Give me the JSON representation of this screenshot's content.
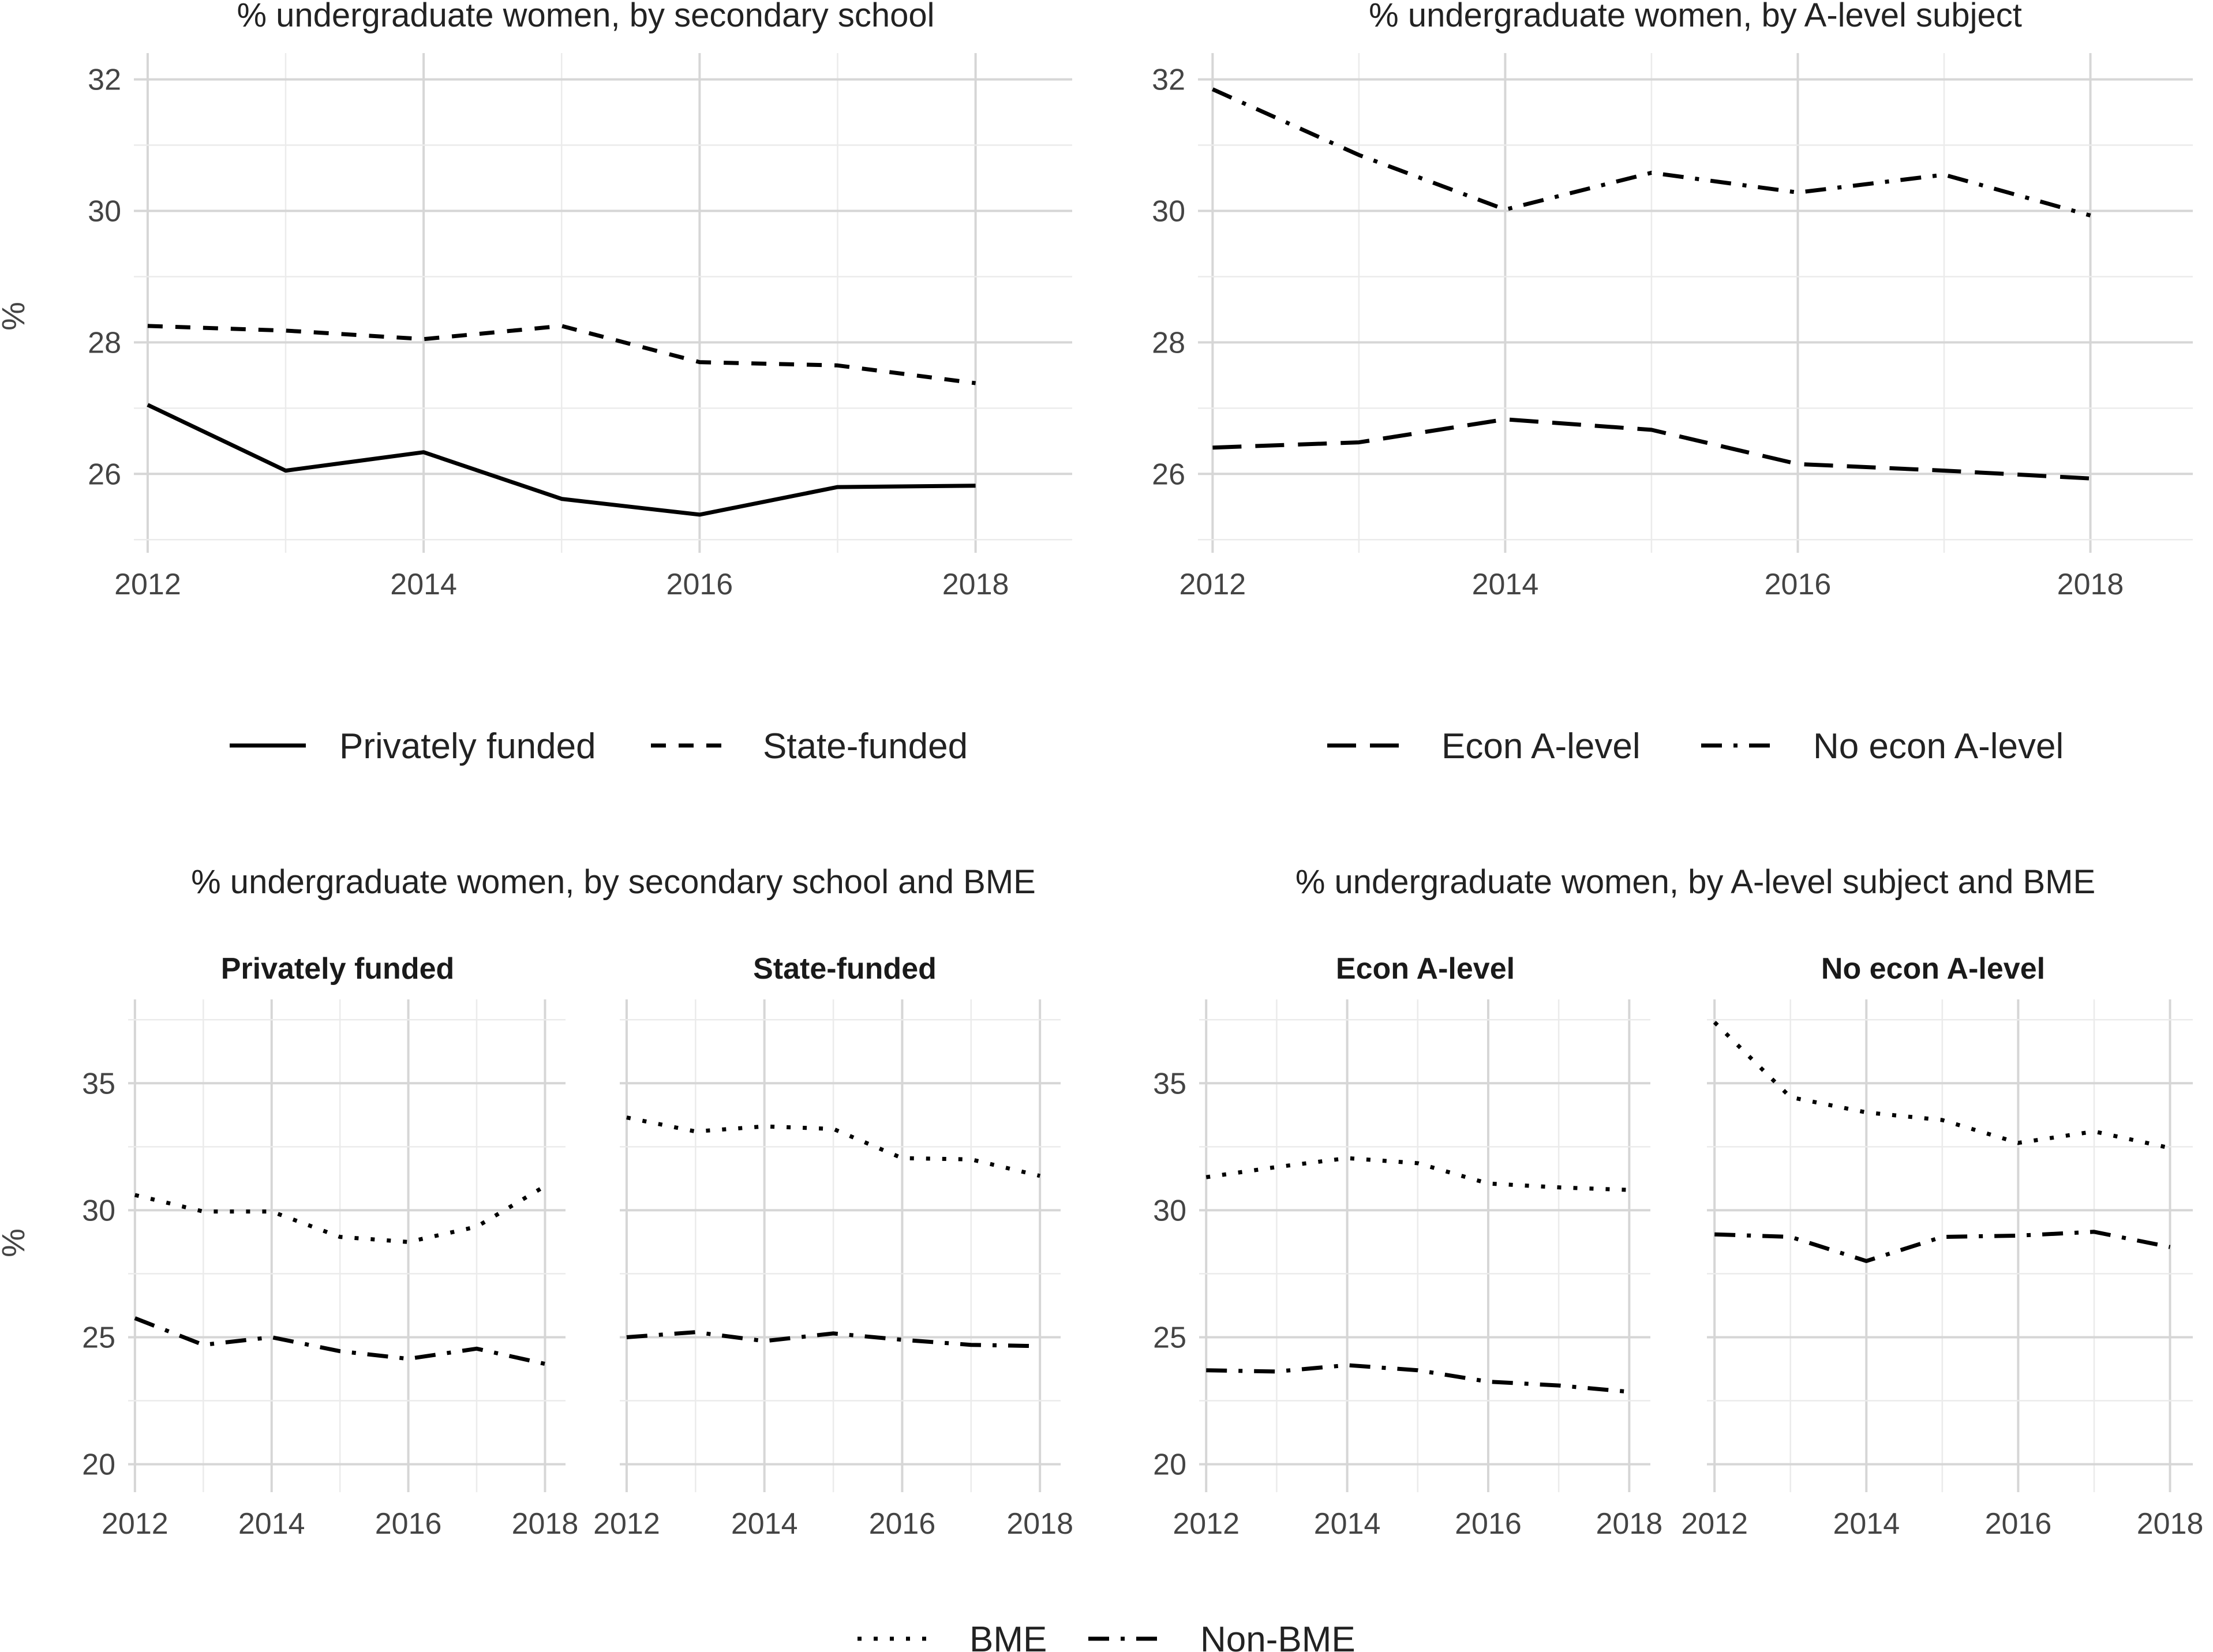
{
  "chart_data": [
    {
      "id": "p1",
      "type": "line",
      "title": "% undergraduate women, by secondary school",
      "ylabel": "%",
      "x": [
        2012,
        2013,
        2014,
        2015,
        2016,
        2017,
        2018
      ],
      "xlim": [
        2011.9,
        2018.7
      ],
      "ylim": [
        24.8,
        32.4
      ],
      "xticks": [
        "2012",
        "2014",
        "2016",
        "2018"
      ],
      "yticks": [
        "26",
        "28",
        "30",
        "32"
      ],
      "series": [
        {
          "name": "Privately funded",
          "dash": "solid",
          "values": [
            27.05,
            26.05,
            26.33,
            25.62,
            25.38,
            25.8,
            25.82
          ]
        },
        {
          "name": "State-funded",
          "dash": "dashed",
          "values": [
            28.25,
            28.18,
            28.05,
            28.25,
            27.7,
            27.65,
            27.38
          ]
        }
      ]
    },
    {
      "id": "p2",
      "type": "line",
      "title": "% undergraduate women, by A-level subject",
      "ylabel": "",
      "x": [
        2012,
        2013,
        2014,
        2015,
        2016,
        2017,
        2018
      ],
      "xlim": [
        2011.9,
        2018.7
      ],
      "ylim": [
        24.8,
        32.4
      ],
      "xticks": [
        "2012",
        "2014",
        "2016",
        "2018"
      ],
      "yticks": [
        "26",
        "28",
        "30",
        "32"
      ],
      "series": [
        {
          "name": "Econ A-level",
          "dash": "longdash",
          "values": [
            26.4,
            26.48,
            26.83,
            26.67,
            26.15,
            26.05,
            25.93
          ]
        },
        {
          "name": "No econ A-level",
          "dash": "dotdash",
          "values": [
            31.85,
            30.85,
            30.02,
            30.58,
            30.28,
            30.55,
            29.93
          ]
        }
      ]
    },
    {
      "id": "p3",
      "type": "line",
      "title": "% undergraduate women, by secondary school and BME",
      "ylabel": "%",
      "x": [
        2012,
        2013,
        2014,
        2015,
        2016,
        2017,
        2018
      ],
      "xlim": [
        2011.9,
        2018.3
      ],
      "ylim": [
        18.9,
        38.3
      ],
      "xticks": [
        "2012",
        "2014",
        "2016",
        "2018"
      ],
      "yticks": [
        "20",
        "25",
        "30",
        "35"
      ],
      "facets": [
        {
          "label": "Privately funded",
          "series": [
            {
              "name": "BME",
              "dash": "dotted",
              "values": [
                30.6,
                29.95,
                29.95,
                28.95,
                28.75,
                29.35,
                30.95
              ]
            },
            {
              "name": "Non-BME",
              "dash": "dotdash",
              "values": [
                25.75,
                24.7,
                25.0,
                24.45,
                24.15,
                24.55,
                23.95
              ]
            }
          ]
        },
        {
          "label": "State-funded",
          "series": [
            {
              "name": "BME",
              "dash": "dotted",
              "values": [
                33.65,
                33.1,
                33.3,
                33.2,
                32.05,
                32.0,
                31.35
              ]
            },
            {
              "name": "Non-BME",
              "dash": "dotdash",
              "values": [
                25.0,
                25.2,
                24.85,
                25.15,
                24.9,
                24.7,
                24.65
              ]
            }
          ]
        }
      ]
    },
    {
      "id": "p4",
      "type": "line",
      "title": "% undergraduate women, by A-level subject and BME",
      "ylabel": "",
      "x": [
        2012,
        2013,
        2014,
        2015,
        2016,
        2017,
        2018
      ],
      "xlim": [
        2011.9,
        2018.3
      ],
      "ylim": [
        18.9,
        38.3
      ],
      "xticks": [
        "2012",
        "2014",
        "2016",
        "2018"
      ],
      "yticks": [
        "20",
        "25",
        "30",
        "35"
      ],
      "facets": [
        {
          "label": "Econ A-level",
          "series": [
            {
              "name": "BME",
              "dash": "dotted",
              "values": [
                31.3,
                31.7,
                32.05,
                31.85,
                31.05,
                30.9,
                30.8
              ]
            },
            {
              "name": "Non-BME",
              "dash": "dotdash",
              "values": [
                23.7,
                23.65,
                23.9,
                23.7,
                23.25,
                23.1,
                22.85
              ]
            }
          ]
        },
        {
          "label": "No econ A-level",
          "series": [
            {
              "name": "BME",
              "dash": "dotted",
              "values": [
                37.4,
                34.45,
                33.85,
                33.55,
                32.65,
                33.1,
                32.45
              ]
            },
            {
              "name": "Non-BME",
              "dash": "dotdash",
              "values": [
                29.05,
                28.95,
                28.0,
                28.95,
                29.0,
                29.15,
                28.55
              ]
            }
          ]
        }
      ]
    }
  ],
  "legends": [
    {
      "items": [
        {
          "label": "Privately funded",
          "dash": "solid"
        },
        {
          "label": "State-funded",
          "dash": "dashed"
        }
      ]
    },
    {
      "items": [
        {
          "label": "Econ A-level",
          "dash": "longdash"
        },
        {
          "label": "No econ A-level",
          "dash": "dotdash"
        }
      ]
    },
    {
      "items": [
        {
          "label": "BME",
          "dash": "dotted"
        },
        {
          "label": "Non-BME",
          "dash": "dotdash"
        }
      ]
    }
  ]
}
